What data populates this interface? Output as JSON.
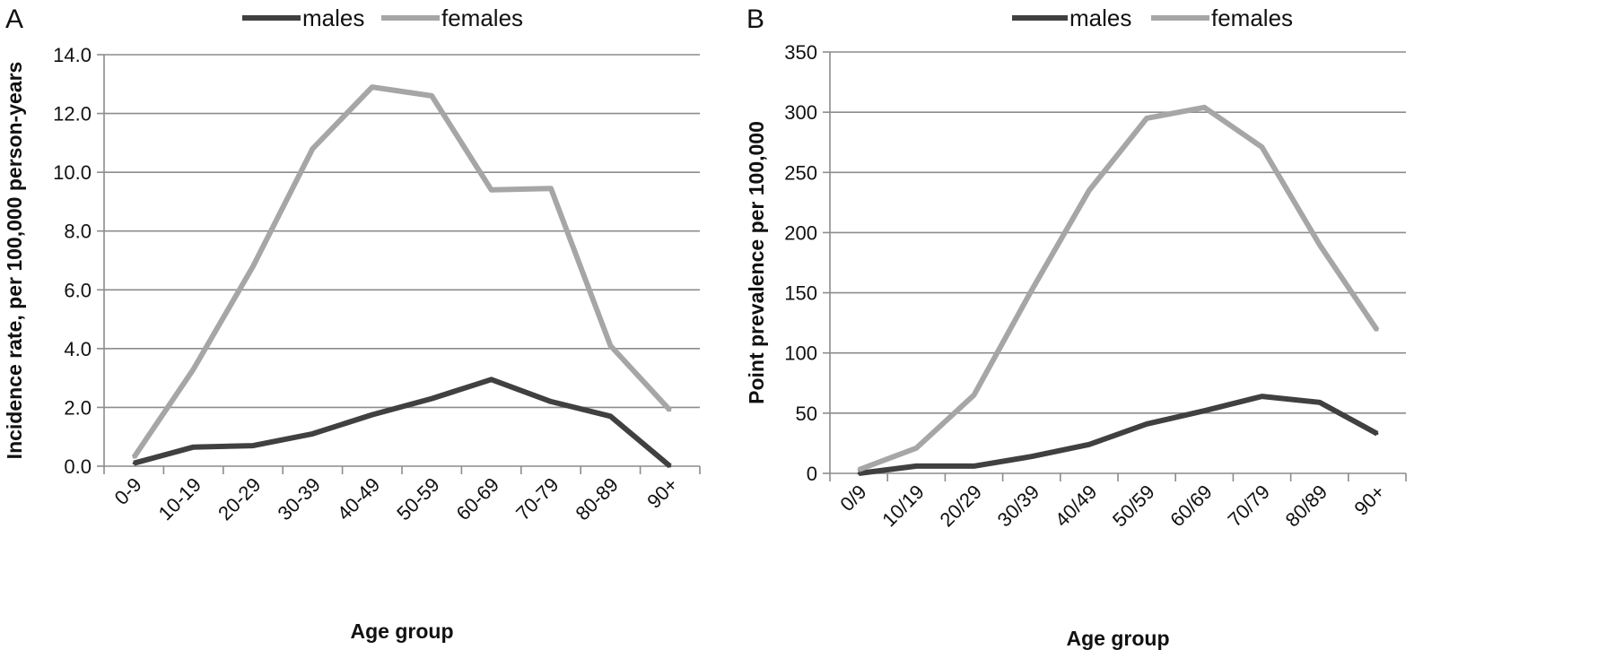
{
  "chart_data": [
    {
      "panel_label": "A",
      "type": "line",
      "categories": [
        "0-9",
        "10-19",
        "20-29",
        "30-39",
        "40-49",
        "50-59",
        "60-69",
        "70-79",
        "80-89",
        "90+"
      ],
      "series": [
        {
          "name": "males",
          "color": "#404040",
          "values": [
            0.1,
            0.65,
            0.7,
            1.1,
            1.75,
            2.3,
            2.95,
            2.2,
            1.7,
            0.0
          ]
        },
        {
          "name": "females",
          "color": "#a6a6a6",
          "values": [
            0.3,
            3.3,
            6.8,
            10.8,
            12.9,
            12.6,
            9.4,
            9.45,
            4.1,
            1.9
          ]
        }
      ],
      "xlabel": "Age group",
      "ylabel": "Incidence rate, per 100,000 person-years",
      "ylim": [
        0,
        14
      ],
      "yticks": [
        "0.0",
        "2.0",
        "4.0",
        "6.0",
        "8.0",
        "10.0",
        "12.0",
        "14.0"
      ],
      "grid": true,
      "legend_position": "top"
    },
    {
      "panel_label": "B",
      "type": "line",
      "categories": [
        "0/9",
        "10/19",
        "20/29",
        "30/39",
        "40/49",
        "50/59",
        "60/69",
        "70/79",
        "80/89",
        "90+"
      ],
      "series": [
        {
          "name": "males",
          "color": "#404040",
          "values": [
            0,
            6,
            6,
            14,
            24,
            41,
            52,
            64,
            59,
            33
          ]
        },
        {
          "name": "females",
          "color": "#a6a6a6",
          "values": [
            3,
            21,
            65,
            152,
            235,
            295,
            304,
            271,
            190,
            119
          ]
        }
      ],
      "xlabel": "Age group",
      "ylabel": "Point prevalence per 100,000",
      "ylim": [
        0,
        350
      ],
      "yticks": [
        "0",
        "50",
        "100",
        "150",
        "200",
        "250",
        "300",
        "350"
      ],
      "grid": true,
      "legend_position": "top"
    }
  ]
}
